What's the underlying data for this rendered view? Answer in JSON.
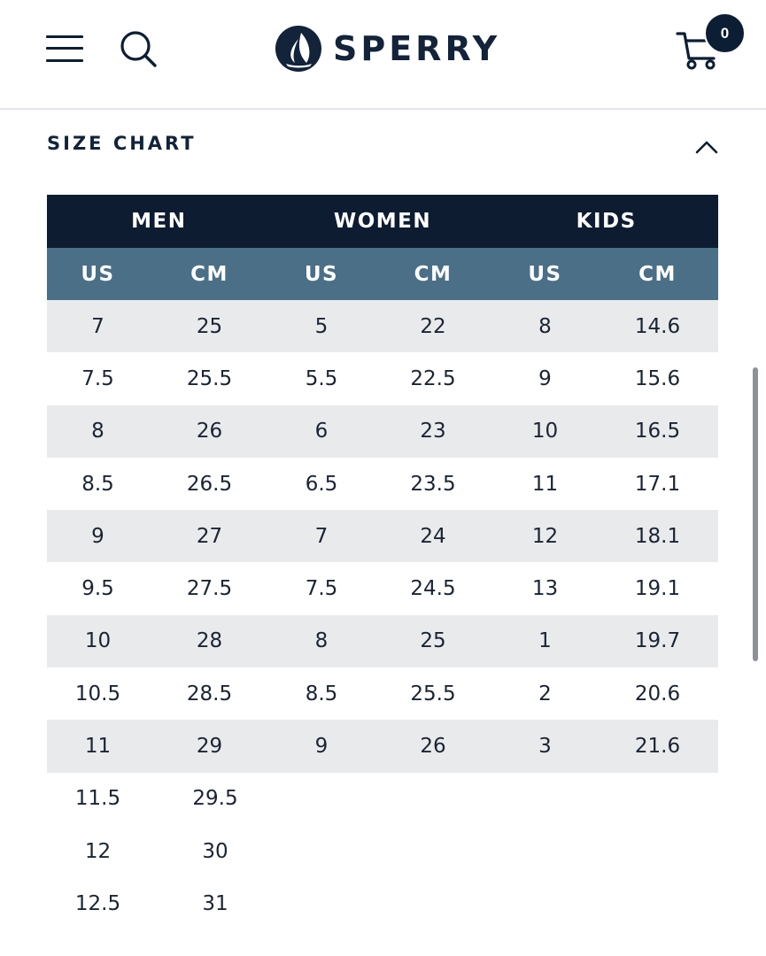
{
  "header": {
    "brand": "SPERRY",
    "cart_count": "0"
  },
  "section": {
    "title": "SIZE CHART"
  },
  "table": {
    "groups": [
      "MEN",
      "WOMEN",
      "KIDS"
    ],
    "units": [
      "US",
      "CM",
      "US",
      "CM",
      "US",
      "CM"
    ],
    "rows": [
      [
        "7",
        "25",
        "5",
        "22",
        "8",
        "14.6"
      ],
      [
        "7.5",
        "25.5",
        "5.5",
        "22.5",
        "9",
        "15.6"
      ],
      [
        "8",
        "26",
        "6",
        "23",
        "10",
        "16.5"
      ],
      [
        "8.5",
        "26.5",
        "6.5",
        "23.5",
        "11",
        "17.1"
      ],
      [
        "9",
        "27",
        "7",
        "24",
        "12",
        "18.1"
      ],
      [
        "9.5",
        "27.5",
        "7.5",
        "24.5",
        "13",
        "19.1"
      ],
      [
        "10",
        "28",
        "8",
        "25",
        "1",
        "19.7"
      ],
      [
        "10.5",
        "28.5",
        "8.5",
        "25.5",
        "2",
        "20.6"
      ],
      [
        "11",
        "29",
        "9",
        "26",
        "3",
        "21.6"
      ],
      [
        "11.5",
        "29.5"
      ],
      [
        "12",
        "30"
      ],
      [
        "12.5",
        "31"
      ]
    ]
  },
  "colors": {
    "navy": "#0d1c31",
    "slate_header": "#4b6f87",
    "row_shade": "#e9eaec"
  },
  "icons": {
    "menu": "menu-icon",
    "search": "search-icon",
    "logo": "sailboat-logo-icon",
    "cart": "cart-icon",
    "collapse": "chevron-up-icon"
  }
}
